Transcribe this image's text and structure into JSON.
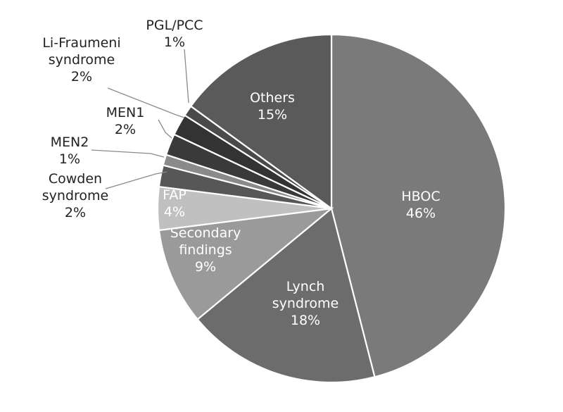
{
  "chart_data": {
    "type": "pie",
    "title": "",
    "slices": [
      {
        "label": [
          "HBOC"
        ],
        "value_label": "46%",
        "value": 46,
        "color": "#7a7a7a"
      },
      {
        "label": [
          "Lynch",
          "syndrome"
        ],
        "value_label": "18%",
        "value": 18,
        "color": "#6c6c6c"
      },
      {
        "label": [
          "Secondary",
          "findings"
        ],
        "value_label": "9%",
        "value": 9,
        "color": "#9a9a9a"
      },
      {
        "label": [
          "FAP"
        ],
        "value_label": "4%",
        "value": 4,
        "color": "#c0c0c0"
      },
      {
        "label": [
          "Cowden",
          "syndrome"
        ],
        "value_label": "2%",
        "value": 2,
        "color": "#575757"
      },
      {
        "label": [
          "MEN2"
        ],
        "value_label": "1%",
        "value": 1,
        "color": "#8a8a8a"
      },
      {
        "label": [
          "MEN1"
        ],
        "value_label": "2%",
        "value": 2,
        "color": "#3a3a3a"
      },
      {
        "label": [
          "Li-Fraumeni",
          "syndrome"
        ],
        "value_label": "2%",
        "value": 2,
        "color": "#333333"
      },
      {
        "label": [
          "PGL/PCC"
        ],
        "value_label": "1%",
        "value": 1,
        "color": "#4a4a4a"
      },
      {
        "label": [
          "Others"
        ],
        "value_label": "15%",
        "value": 15,
        "color": "#5a5a5a"
      }
    ]
  }
}
